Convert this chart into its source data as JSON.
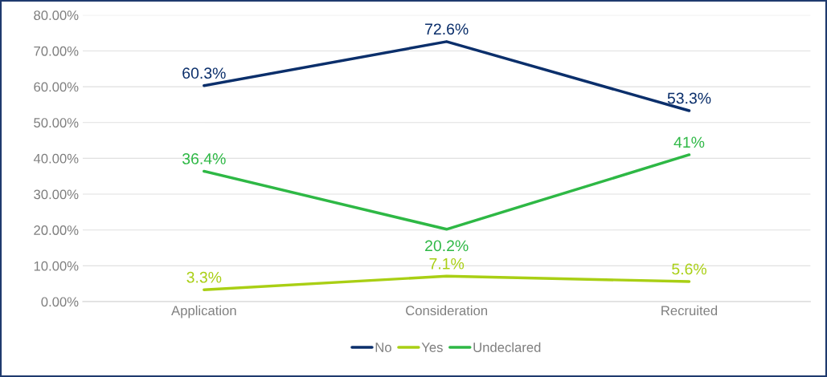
{
  "chart_data": {
    "type": "line",
    "categories": [
      "Application",
      "Consideration",
      "Recruited"
    ],
    "series": [
      {
        "name": "No",
        "color": "#0b2f6b",
        "values": [
          60.3,
          72.6,
          53.3
        ],
        "value_labels": [
          "60.3%",
          "72.6%",
          "53.3%"
        ]
      },
      {
        "name": "Yes",
        "color": "#a9cf14",
        "values": [
          3.3,
          7.1,
          5.6
        ],
        "value_labels": [
          "3.3%",
          "7.1%",
          "5.6%"
        ]
      },
      {
        "name": "Undeclared",
        "color": "#2eb845",
        "values": [
          36.4,
          20.2,
          41
        ],
        "value_labels": [
          "36.4%",
          "20.2%",
          "41%"
        ]
      }
    ],
    "ylim": [
      0,
      80
    ],
    "yticks": [
      {
        "value": 0,
        "label": "0.00%"
      },
      {
        "value": 10,
        "label": "10.00%"
      },
      {
        "value": 20,
        "label": "20.00%"
      },
      {
        "value": 30,
        "label": "30.00%"
      },
      {
        "value": 40,
        "label": "40.00%"
      },
      {
        "value": 50,
        "label": "50.00%"
      },
      {
        "value": 60,
        "label": "60.00%"
      },
      {
        "value": 70,
        "label": "70.00%"
      },
      {
        "value": 80,
        "label": "80.00%"
      }
    ],
    "grid": "y",
    "legend": "bottom",
    "marker": "none",
    "line_style": "solid"
  }
}
